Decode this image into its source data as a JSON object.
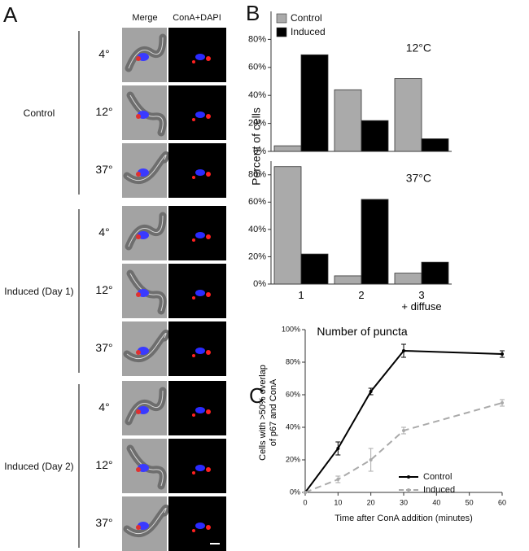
{
  "panel_a": {
    "label": "A",
    "columns": [
      "Merge",
      "ConA+DAPI"
    ],
    "groups": [
      {
        "name": "Control",
        "rows": [
          "4°",
          "12°",
          "37°"
        ]
      },
      {
        "name": "Induced (Day 1)",
        "rows": [
          "4°",
          "12°",
          "37°"
        ]
      },
      {
        "name": "Induced (Day 2)",
        "rows": [
          "4°",
          "12°",
          "37°"
        ]
      }
    ]
  },
  "chart_data": [
    {
      "type": "bar",
      "panel_label": "B",
      "subtitle": "12°C",
      "ylabel": "Percent of cells",
      "series": [
        {
          "name": "Control",
          "color": "#aaaaaa",
          "values": [
            4,
            44,
            52
          ]
        },
        {
          "name": "Induced",
          "color": "#000000",
          "values": [
            69,
            22,
            9
          ]
        }
      ],
      "ylim": [
        0,
        100
      ],
      "yticks": [
        {
          "value": 0,
          "label": "0%"
        },
        {
          "value": 20,
          "label": "20%"
        },
        {
          "value": 40,
          "label": "40%"
        },
        {
          "value": 60,
          "label": "60%"
        },
        {
          "value": 80,
          "label": "80%"
        }
      ],
      "legend": "top-left",
      "grid": false
    },
    {
      "type": "bar",
      "subtitle": "37°C",
      "xlabel": "Number of puncta",
      "categories": [
        "1",
        "2",
        "3\n+ diffuse"
      ],
      "series": [
        {
          "color": "#aaaaaa",
          "values": [
            86,
            6,
            8
          ]
        },
        {
          "color": "#000000",
          "values": [
            22,
            62,
            16
          ]
        }
      ],
      "ylim": [
        0,
        90
      ],
      "yticks": [
        {
          "value": 0,
          "label": "0%"
        },
        {
          "value": 20,
          "label": "20%"
        },
        {
          "value": 40,
          "label": "40%"
        },
        {
          "value": 60,
          "label": "60%"
        },
        {
          "value": 80,
          "label": "80%"
        }
      ],
      "grid": false
    },
    {
      "type": "line",
      "panel_label": "C",
      "xlabel": "Time after ConA addition (minutes)",
      "ylabel": "Cells with >50% overlap\nof p67 and ConA",
      "x": [
        0,
        10,
        20,
        30,
        60
      ],
      "series": [
        {
          "name": "Control",
          "color": "#000000",
          "values": [
            0,
            27,
            62,
            87,
            85
          ],
          "errors": [
            0,
            4,
            2,
            4,
            2
          ]
        },
        {
          "name": "Induced",
          "color": "#aaaaaa",
          "dashed": true,
          "values": [
            0,
            8,
            20,
            38,
            55
          ],
          "errors": [
            0,
            2,
            7,
            2,
            2
          ]
        }
      ],
      "xlim": [
        0,
        60
      ],
      "xticks": [
        0,
        10,
        20,
        30,
        40,
        50,
        60
      ],
      "ylim": [
        0,
        100
      ],
      "yticks": [
        {
          "value": 0,
          "label": "0%"
        },
        {
          "value": 20,
          "label": "20%"
        },
        {
          "value": 40,
          "label": "40%"
        },
        {
          "value": 60,
          "label": "60%"
        },
        {
          "value": 80,
          "label": "80%"
        },
        {
          "value": 100,
          "label": "100%"
        }
      ],
      "legend": "bottom-right",
      "grid": false
    }
  ]
}
